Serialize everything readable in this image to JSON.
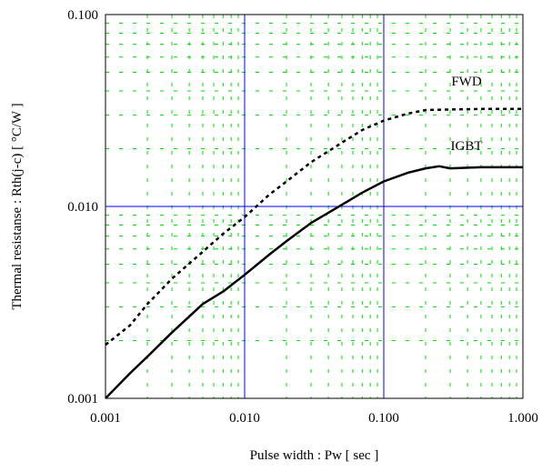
{
  "chart_data": {
    "type": "line",
    "title": "",
    "xlabel": "Pulse width : Pw [ sec ]",
    "ylabel": "Thermal resistanse : Rth(j-c) [ °C/W ]",
    "x_scale": "log",
    "y_scale": "log",
    "xlim": [
      0.001,
      1.0
    ],
    "ylim": [
      0.001,
      0.1
    ],
    "x_ticks": [
      "0.001",
      "0.010",
      "0.100",
      "1.000"
    ],
    "y_ticks": [
      "0.001",
      "0.010",
      "0.100"
    ],
    "major_grid": true,
    "minor_grid": true,
    "major_grid_color": "#0000ff",
    "minor_grid_color": "#00dd00",
    "series": [
      {
        "name": "FWD",
        "line_style": "dashed",
        "color": "#000000",
        "x": [
          0.001,
          0.0015,
          0.002,
          0.003,
          0.005,
          0.007,
          0.01,
          0.015,
          0.02,
          0.03,
          0.05,
          0.07,
          0.1,
          0.15,
          0.2,
          0.3,
          0.5,
          1.0
        ],
        "y": [
          0.0019,
          0.0024,
          0.0031,
          0.0042,
          0.0058,
          0.0072,
          0.0088,
          0.0115,
          0.0135,
          0.017,
          0.0215,
          0.025,
          0.028,
          0.0305,
          0.0318,
          0.032,
          0.0322,
          0.0322
        ]
      },
      {
        "name": "IGBT",
        "line_style": "solid",
        "color": "#000000",
        "x": [
          0.001,
          0.0015,
          0.002,
          0.003,
          0.005,
          0.007,
          0.01,
          0.015,
          0.02,
          0.03,
          0.05,
          0.07,
          0.1,
          0.15,
          0.2,
          0.25,
          0.3,
          0.5,
          1.0
        ],
        "y": [
          0.001,
          0.00135,
          0.00165,
          0.0022,
          0.0031,
          0.0036,
          0.0044,
          0.0056,
          0.0066,
          0.0082,
          0.0102,
          0.0118,
          0.0135,
          0.015,
          0.0158,
          0.0162,
          0.0158,
          0.016,
          0.016
        ]
      }
    ]
  }
}
